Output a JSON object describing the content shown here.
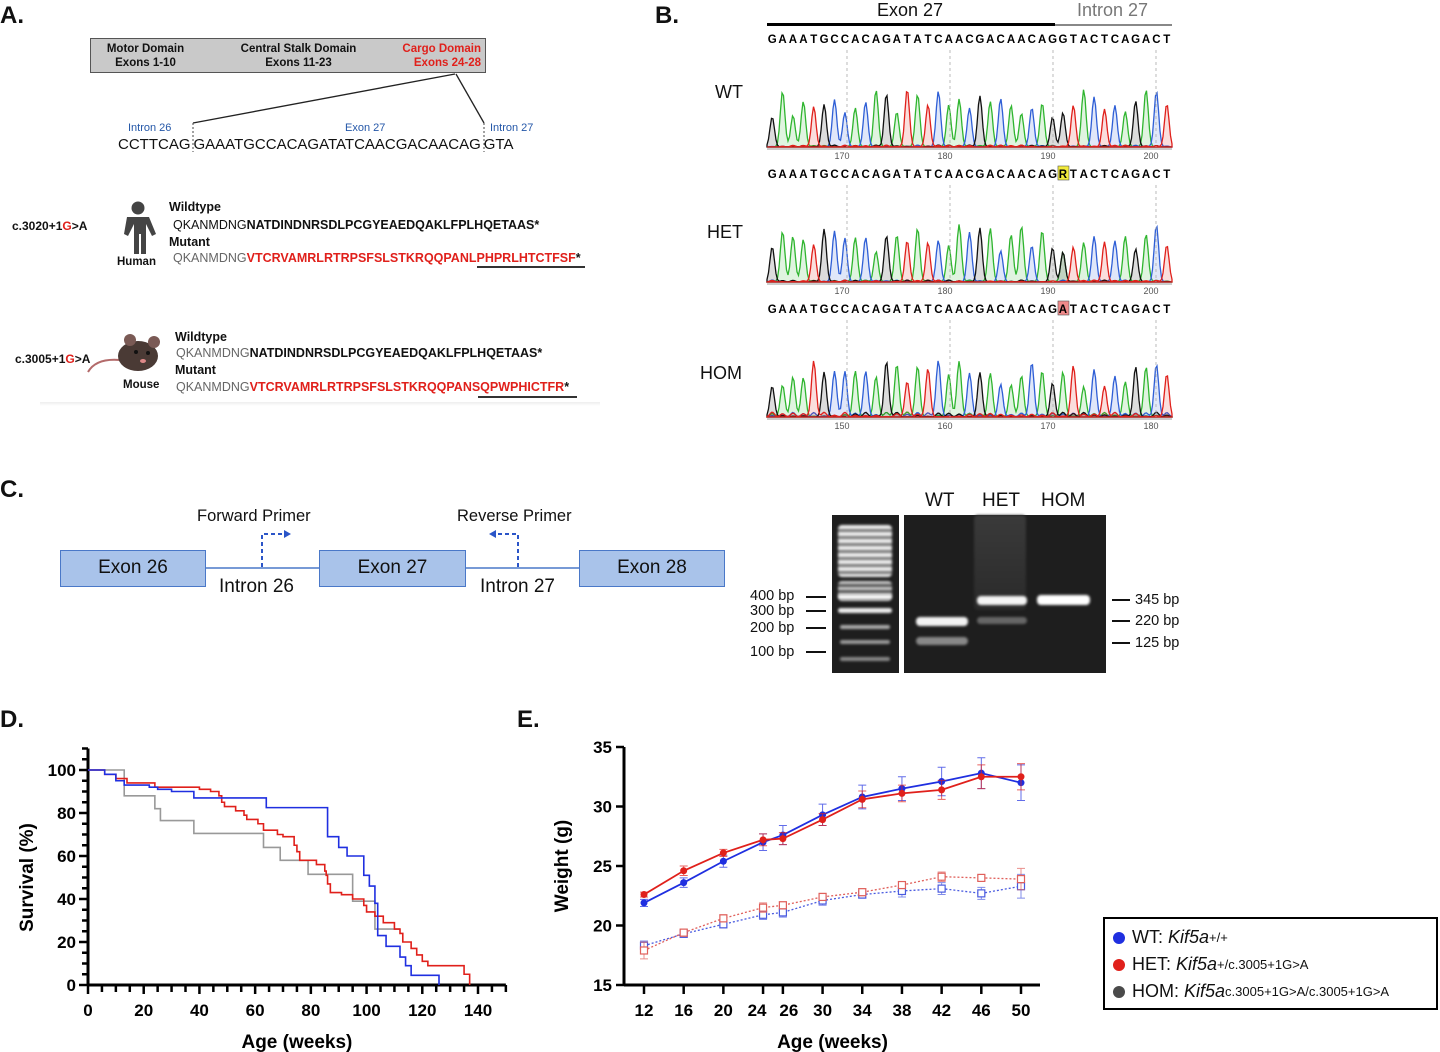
{
  "panel_a": {
    "label": "A.",
    "domains": [
      {
        "name": "Motor Domain",
        "exons": "Exons 1-10",
        "color": "#111111"
      },
      {
        "name": "Central Stalk Domain",
        "exons": "Exons 11-23",
        "color": "#111111"
      },
      {
        "name": "Cargo Domain",
        "exons": "Exons 24-28",
        "color": "#e0201b"
      }
    ],
    "region_labels": {
      "intron26": "Intron 26",
      "exon27": "Exon 27",
      "intron27": "Intron 27"
    },
    "genomic_sequence": {
      "intron26": "CCTTCAG",
      "exon27": "GAAATGCCACAGATATCAACGACAACAG",
      "intron27": "GTA"
    },
    "human": {
      "variant_prefix": "c.3020+1",
      "variant_base": "G",
      "variant_suffix": ">A",
      "species": "Human",
      "wildtype_label": "Wildtype",
      "wildtype_shared": "QKANMDNG",
      "wildtype_rest": "NATDINDNRSDLPCGYEAEDQAKLFPLHQETAAS*",
      "mutant_label": "Mutant",
      "mutant_shared": "QKANMDNG",
      "mutant_rest": "VTCRVAMRLRTRPSFSLSTKRQQPANLPHPRLHTCTFSF",
      "mutant_stop": "*"
    },
    "mouse": {
      "variant_prefix": "c.3005+1",
      "variant_base": "G",
      "variant_suffix": ">A",
      "species": "Mouse",
      "wildtype_label": "Wildtype",
      "wildtype_shared": "QKANMDNG",
      "wildtype_rest": "NATDINDNRSDLPCGYEAEDQAKLFPLHQETAAS*",
      "mutant_label": "Mutant",
      "mutant_shared": "QKANMDNG",
      "mutant_rest": "VTCRVAMRLRTRPSFSLSTKRQQPANSQPWPHICTFR",
      "mutant_stop": "*"
    }
  },
  "panel_b": {
    "label": "B.",
    "exon_label": "Exon 27",
    "intron_label": "Intron 27",
    "base_colors": {
      "A": "#2fb52f",
      "C": "#2f5fd6",
      "G": "#111111",
      "T": "#e0201b"
    },
    "traces": [
      {
        "genotype": "WT",
        "sequence": "GAAATGCCACAGATATCAACGACAACAGGTACTCAGACT",
        "highlight": null,
        "ticks": [
          "170",
          "180",
          "190",
          "200"
        ]
      },
      {
        "genotype": "HET",
        "sequence": "GAAATGCCACAGATATCAACGACAACAGRTACTCAGACT",
        "highlight": {
          "index": 28,
          "color": "#f2ea3a"
        },
        "ticks": [
          "170",
          "180",
          "190",
          "200"
        ]
      },
      {
        "genotype": "HOM",
        "sequence": "GAAATGCCACAGATATCAACGACAACAGATACTCAGACT",
        "highlight": {
          "index": 28,
          "color": "#f08a8a"
        },
        "ticks": [
          "150",
          "160",
          "170",
          "180"
        ]
      }
    ]
  },
  "panel_c": {
    "label": "C.",
    "exons": [
      "Exon 26",
      "Exon 27",
      "Exon 28"
    ],
    "introns": [
      "Intron 26",
      "Intron 27"
    ],
    "forward_primer": "Forward Primer",
    "reverse_primer": "Reverse Primer",
    "primer_color": "#2b55c8",
    "gel": {
      "lanes": [
        "WT",
        "HET",
        "HOM"
      ],
      "ladder_labels": [
        "400 bp",
        "300 bp",
        "200 bp",
        "100 bp"
      ],
      "band_labels": [
        "345 bp",
        "220 bp",
        "125 bp"
      ],
      "bands": [
        {
          "lane": "WT",
          "sizes": [
            "220 bp",
            "125 bp"
          ]
        },
        {
          "lane": "HET",
          "sizes": [
            "345 bp",
            "220 bp"
          ]
        },
        {
          "lane": "HOM",
          "sizes": [
            "345 bp"
          ]
        }
      ]
    }
  },
  "panel_d": {
    "label": "D."
  },
  "panel_e": {
    "label": "E."
  },
  "legend": [
    {
      "prefix": "WT: ",
      "gene": "Kif5a",
      "allele": "+/+",
      "color": "#1f2fe0"
    },
    {
      "prefix": "HET: ",
      "gene": "Kif5a",
      "allele": "+/c.3005+1G>A",
      "color": "#e0201b"
    },
    {
      "prefix": "HOM: ",
      "gene": "Kif5a",
      "allele": "c.3005+1G>A/c.3005+1G>A",
      "color": "#4a4a4a"
    }
  ],
  "chart_data": [
    {
      "type": "line",
      "subtype": "kaplan-meier step",
      "xlabel": "Age (weeks)",
      "ylabel": "Survival (%)",
      "xlim": [
        0,
        150
      ],
      "ylim": [
        0,
        110
      ],
      "xticks": [
        0,
        20,
        40,
        60,
        80,
        100,
        120,
        140
      ],
      "yticks": [
        0,
        20,
        40,
        60,
        80,
        100
      ],
      "grid": false,
      "series": [
        {
          "name": "WT",
          "color": "#1f2fe0",
          "steps": [
            [
              0,
              100
            ],
            [
              6,
              98
            ],
            [
              10,
              95
            ],
            [
              13,
              93
            ],
            [
              22,
              92
            ],
            [
              25,
              91
            ],
            [
              30,
              90
            ],
            [
              38,
              87
            ],
            [
              64,
              82.5
            ],
            [
              86,
              69
            ],
            [
              90,
              64
            ],
            [
              93,
              60
            ],
            [
              99,
              51
            ],
            [
              101,
              46
            ],
            [
              103,
              38
            ],
            [
              104,
              23
            ],
            [
              107,
              18
            ],
            [
              112,
              13
            ],
            [
              114,
              9
            ],
            [
              116,
              4.5
            ],
            [
              126,
              0
            ]
          ]
        },
        {
          "name": "HET",
          "color": "#e0201b",
          "steps": [
            [
              0,
              100
            ],
            [
              6,
              98
            ],
            [
              10,
              96
            ],
            [
              14,
              94
            ],
            [
              24,
              92
            ],
            [
              40,
              91
            ],
            [
              44,
              90
            ],
            [
              47,
              88
            ],
            [
              48,
              85
            ],
            [
              49,
              83
            ],
            [
              53,
              81
            ],
            [
              56,
              79
            ],
            [
              57,
              77
            ],
            [
              61,
              75
            ],
            [
              63,
              72
            ],
            [
              68,
              70
            ],
            [
              70,
              69
            ],
            [
              74,
              65
            ],
            [
              75,
              62
            ],
            [
              76,
              58
            ],
            [
              82,
              56
            ],
            [
              85,
              53
            ],
            [
              85.5,
              51
            ],
            [
              86,
              47
            ],
            [
              87,
              43
            ],
            [
              91,
              42
            ],
            [
              95,
              40
            ],
            [
              99,
              37
            ],
            [
              100,
              34
            ],
            [
              103,
              32
            ],
            [
              106,
              29
            ],
            [
              110,
              26
            ],
            [
              112,
              24
            ],
            [
              113,
              20
            ],
            [
              116,
              17
            ],
            [
              118,
              14
            ],
            [
              120,
              11
            ],
            [
              122,
              9
            ],
            [
              135,
              5
            ],
            [
              137,
              0
            ]
          ]
        },
        {
          "name": "HOM",
          "color": "#999999",
          "steps": [
            [
              0,
              100
            ],
            [
              13,
              88
            ],
            [
              24,
              82
            ],
            [
              26,
              76.5
            ],
            [
              38,
              70.5
            ],
            [
              63,
              64
            ],
            [
              69,
              58
            ],
            [
              79,
              51.5
            ],
            [
              95,
              39
            ],
            [
              103,
              26
            ],
            [
              112,
              26
            ]
          ]
        }
      ]
    },
    {
      "type": "line",
      "xlabel": "Age (weeks)",
      "ylabel": "Weight (g)",
      "ylim": [
        15,
        35
      ],
      "x": [
        12,
        16,
        20,
        24,
        26,
        30,
        34,
        38,
        42,
        46,
        50
      ],
      "yticks": [
        15,
        20,
        25,
        30,
        35
      ],
      "grid": false,
      "series": [
        {
          "name": "WT",
          "color": "#1f2fe0",
          "marker": "filled circle",
          "line": "solid",
          "values": [
            21.9,
            23.6,
            25.4,
            27.0,
            27.6,
            29.3,
            30.8,
            31.5,
            32.1,
            32.8,
            32.0
          ],
          "error": [
            0.3,
            0.4,
            0.5,
            0.7,
            0.8,
            0.9,
            1.0,
            1.0,
            1.2,
            1.3,
            1.5
          ]
        },
        {
          "name": "HET",
          "color": "#e0201b",
          "marker": "filled circle",
          "line": "solid",
          "values": [
            22.6,
            24.6,
            26.1,
            27.2,
            27.3,
            28.9,
            30.6,
            31.1,
            31.4,
            32.5,
            32.5
          ],
          "error": [
            0.2,
            0.4,
            0.3,
            0.5,
            0.5,
            0.5,
            0.7,
            0.7,
            0.8,
            1.0,
            1.1
          ]
        },
        {
          "name": "WT",
          "color": "#4a5be0",
          "marker": "open square",
          "line": "dotted",
          "values": [
            18.3,
            19.3,
            20.1,
            20.9,
            21.1,
            22.1,
            22.6,
            22.9,
            23.1,
            22.7,
            23.3
          ],
          "error": [
            0.4,
            0.3,
            0.3,
            0.4,
            0.4,
            0.4,
            0.3,
            0.5,
            0.5,
            0.5,
            1.0
          ]
        },
        {
          "name": "HET",
          "color": "#e0605b",
          "marker": "open square",
          "line": "dotted",
          "values": [
            17.9,
            19.4,
            20.6,
            21.5,
            21.7,
            22.4,
            22.8,
            23.4,
            24.1,
            24.0,
            23.9
          ],
          "error": [
            0.7,
            0.3,
            0.3,
            0.4,
            0.3,
            0.3,
            0.3,
            0.3,
            0.4,
            0.2,
            0.9
          ]
        }
      ]
    }
  ]
}
